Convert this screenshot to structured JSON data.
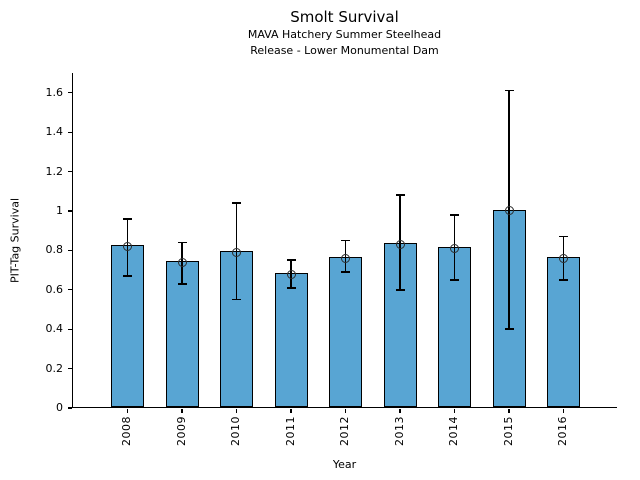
{
  "header": {
    "title": "Smolt Survival",
    "subtitle_line1": "MAVA Hatchery Summer Steelhead",
    "subtitle_line2": "Release - Lower Monumental Dam"
  },
  "chart_data": {
    "type": "bar",
    "title": "Smolt Survival",
    "subtitle": [
      "MAVA Hatchery Summer Steelhead",
      "Release - Lower Monumental Dam"
    ],
    "xlabel": "Year",
    "ylabel": "PIT-Tag Survival",
    "categories": [
      "2008",
      "2009",
      "2010",
      "2011",
      "2012",
      "2013",
      "2014",
      "2015",
      "2016"
    ],
    "series": [
      {
        "name": "PIT-Tag Survival",
        "values": [
          0.82,
          0.74,
          0.79,
          0.68,
          0.76,
          0.83,
          0.81,
          1.0,
          0.76
        ],
        "error_low": [
          0.67,
          0.63,
          0.55,
          0.61,
          0.69,
          0.6,
          0.65,
          0.4,
          0.65
        ],
        "error_high": [
          0.96,
          0.84,
          1.04,
          0.75,
          0.85,
          1.08,
          0.98,
          1.61,
          0.87
        ]
      }
    ],
    "ylim": [
      0,
      1.7
    ],
    "ytick_values": [
      0,
      0.2,
      0.4,
      0.6,
      0.8,
      1.0,
      1.2,
      1.4,
      1.6
    ],
    "ytick_labels": [
      "0",
      "0.2",
      "0.4",
      "0.6",
      "0.8",
      "1",
      "1.2",
      "1.4",
      "1.6"
    ],
    "xtick_rotation_deg": 90,
    "grid": false,
    "legend": null,
    "marker": "open-circle",
    "colors": {
      "bar_fill": "#58A5D3",
      "bar_edge": "#000000",
      "error_bar": "#000000",
      "marker_edge": "#2b2b2b",
      "axis": "#000000",
      "text": "#000000",
      "background": "#ffffff"
    }
  }
}
